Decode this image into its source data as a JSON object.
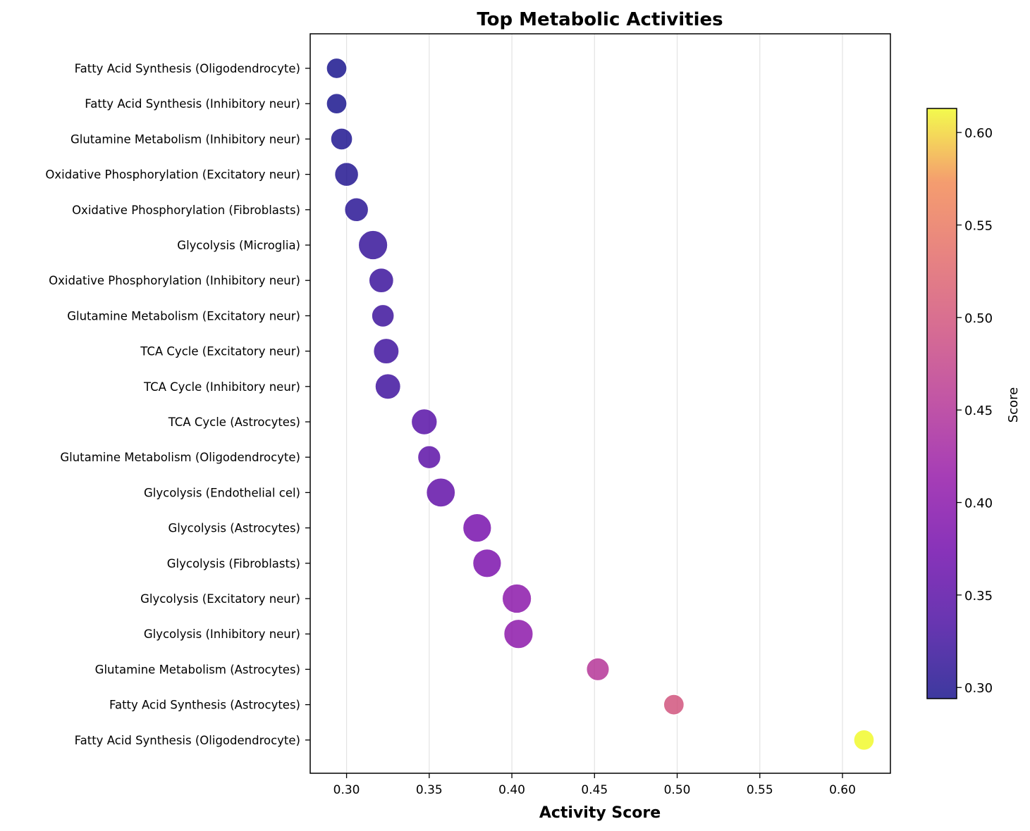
{
  "chart_data": {
    "type": "scatter",
    "title": "Top Metabolic Activities",
    "xlabel": "Activity Score",
    "ylabel": "",
    "xlim": [
      0.278,
      0.629
    ],
    "x_ticks": [
      0.3,
      0.35,
      0.4,
      0.45,
      0.5,
      0.55,
      0.6
    ],
    "x_tick_labels": [
      "0.30",
      "0.35",
      "0.40",
      "0.45",
      "0.50",
      "0.55",
      "0.60"
    ],
    "grid": "vertical",
    "colormap": "plasma",
    "colorbar": {
      "label": "Score",
      "range": [
        0.294,
        0.613
      ],
      "ticks": [
        0.3,
        0.35,
        0.4,
        0.45,
        0.5,
        0.55,
        0.6
      ],
      "tick_labels": [
        "0.30",
        "0.35",
        "0.40",
        "0.45",
        "0.50",
        "0.55",
        "0.60"
      ]
    },
    "categories": [
      "Fatty Acid Synthesis (Oligodendrocyte)",
      "Fatty Acid Synthesis (Inhibitory neur)",
      "Glutamine Metabolism (Inhibitory neur)",
      "Oxidative Phosphorylation (Excitatory neur)",
      "Oxidative Phosphorylation (Fibroblasts)",
      "Glycolysis (Microglia)",
      "Oxidative Phosphorylation (Inhibitory neur)",
      "Glutamine Metabolism (Excitatory neur)",
      "TCA Cycle (Excitatory neur)",
      "TCA Cycle (Inhibitory neur)",
      "TCA Cycle (Astrocytes)",
      "Glutamine Metabolism (Oligodendrocyte)",
      "Glycolysis (Endothelial cel)",
      "Glycolysis (Astrocytes)",
      "Glycolysis (Fibroblasts)",
      "Glycolysis (Excitatory neur)",
      "Glycolysis (Inhibitory neur)",
      "Glutamine Metabolism (Astrocytes)",
      "Fatty Acid Synthesis (Astrocytes)",
      "Fatty Acid Synthesis (Oligodendrocyte)"
    ],
    "values": [
      0.294,
      0.294,
      0.297,
      0.3,
      0.306,
      0.316,
      0.321,
      0.322,
      0.324,
      0.325,
      0.347,
      0.35,
      0.357,
      0.379,
      0.385,
      0.403,
      0.404,
      0.452,
      0.498,
      0.613
    ],
    "bubble_size": [
      0.3,
      0.3,
      0.38,
      0.5,
      0.5,
      0.82,
      0.55,
      0.42,
      0.6,
      0.6,
      0.62,
      0.45,
      0.8,
      0.78,
      0.78,
      0.82,
      0.82,
      0.44,
      0.3,
      0.3
    ]
  }
}
